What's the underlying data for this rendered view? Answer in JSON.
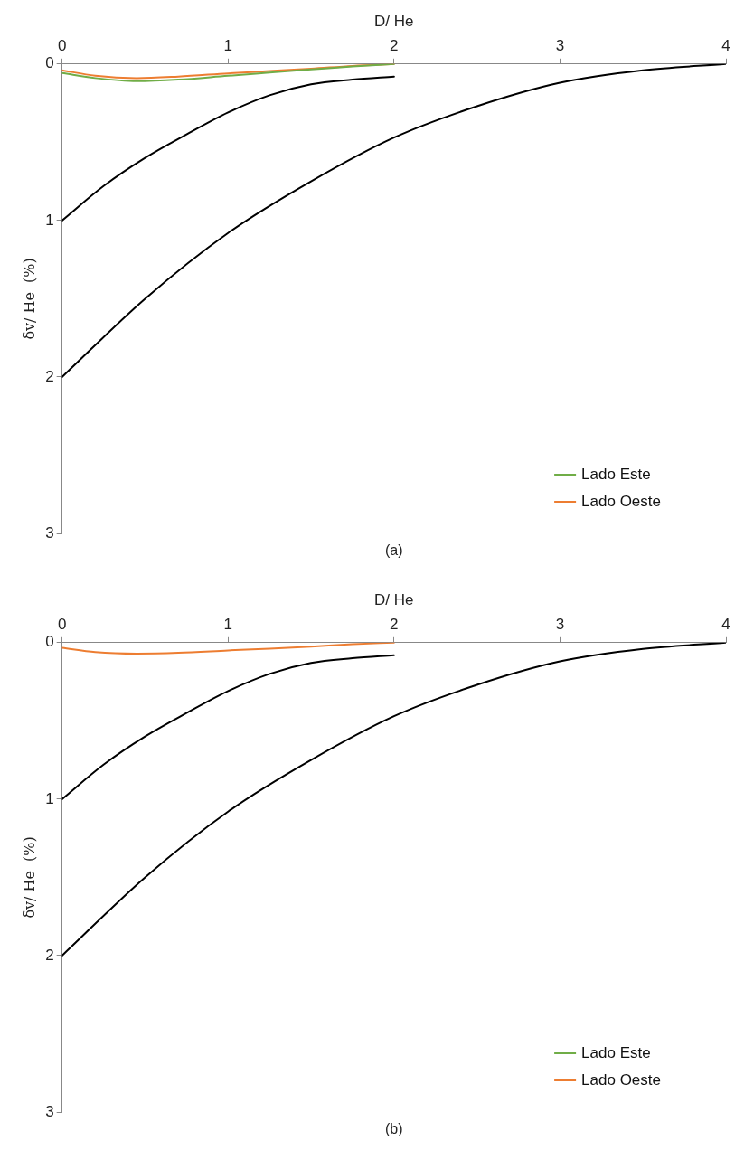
{
  "chart_data": [
    {
      "type": "line",
      "xlabel": "D/ He",
      "ylabel": "δv/ He  (%)",
      "xlim": [
        0,
        4
      ],
      "xticks": [
        0,
        1,
        2,
        3,
        4
      ],
      "ylim": [
        3,
        0
      ],
      "yticks": [
        0,
        1,
        2,
        3
      ],
      "grid": false,
      "legend": "bottom right",
      "marker": "none",
      "line_style": "solid",
      "annotations": [
        "(a)"
      ],
      "series": [
        {
          "name": "Lado Este",
          "color": "#70ad47",
          "x": [
            0,
            0.2,
            0.45,
            0.7,
            1,
            1.25,
            1.5,
            1.75,
            2
          ],
          "values": [
            0.058,
            0.09,
            0.11,
            0.1,
            0.075,
            0.055,
            0.035,
            0.015,
            0
          ]
        },
        {
          "name": "Lado Oeste",
          "color": "#ed7d31",
          "x": [
            0,
            0.2,
            0.45,
            0.7,
            1,
            1.25,
            1.5,
            1.75,
            2
          ],
          "values": [
            0.04,
            0.075,
            0.09,
            0.08,
            0.06,
            0.045,
            0.03,
            0.012,
            0
          ]
        },
        {
          "color": "#000000",
          "x": [
            0,
            0.25,
            0.5,
            0.75,
            1,
            1.25,
            1.5,
            1.75,
            2
          ],
          "values": [
            1,
            0.78,
            0.6,
            0.45,
            0.31,
            0.2,
            0.13,
            0.1,
            0.08
          ]
        },
        {
          "color": "#000000",
          "x": [
            0,
            0.5,
            1,
            1.5,
            2,
            2.5,
            3,
            3.5,
            4
          ],
          "values": [
            2,
            1.5,
            1.08,
            0.75,
            0.47,
            0.27,
            0.12,
            0.04,
            0
          ]
        }
      ]
    },
    {
      "type": "line",
      "xlabel": "D/ He",
      "ylabel": "δv/ He  (%)",
      "xlim": [
        0,
        4
      ],
      "xticks": [
        0,
        1,
        2,
        3,
        4
      ],
      "ylim": [
        3,
        0
      ],
      "yticks": [
        0,
        1,
        2,
        3
      ],
      "grid": false,
      "legend": "bottom right",
      "marker": "none",
      "line_style": "solid",
      "annotations": [
        "(b)"
      ],
      "series": [
        {
          "name": "Lado Este",
          "color": "#70ad47"
        },
        {
          "name": "Lado Oeste",
          "color": "#ed7d31",
          "x": [
            0,
            0.2,
            0.45,
            0.7,
            1,
            1.25,
            1.5,
            1.75,
            2
          ],
          "values": [
            0.033,
            0.06,
            0.07,
            0.065,
            0.05,
            0.038,
            0.025,
            0.01,
            0
          ]
        },
        {
          "color": "#000000",
          "x": [
            0,
            0.25,
            0.5,
            0.75,
            1,
            1.25,
            1.5,
            1.75,
            2
          ],
          "values": [
            1,
            0.78,
            0.6,
            0.45,
            0.31,
            0.2,
            0.13,
            0.1,
            0.08
          ]
        },
        {
          "color": "#000000",
          "x": [
            0,
            0.5,
            1,
            1.5,
            2,
            2.5,
            3,
            3.5,
            4
          ],
          "values": [
            2,
            1.5,
            1.08,
            0.75,
            0.47,
            0.27,
            0.12,
            0.04,
            0
          ]
        }
      ]
    }
  ]
}
